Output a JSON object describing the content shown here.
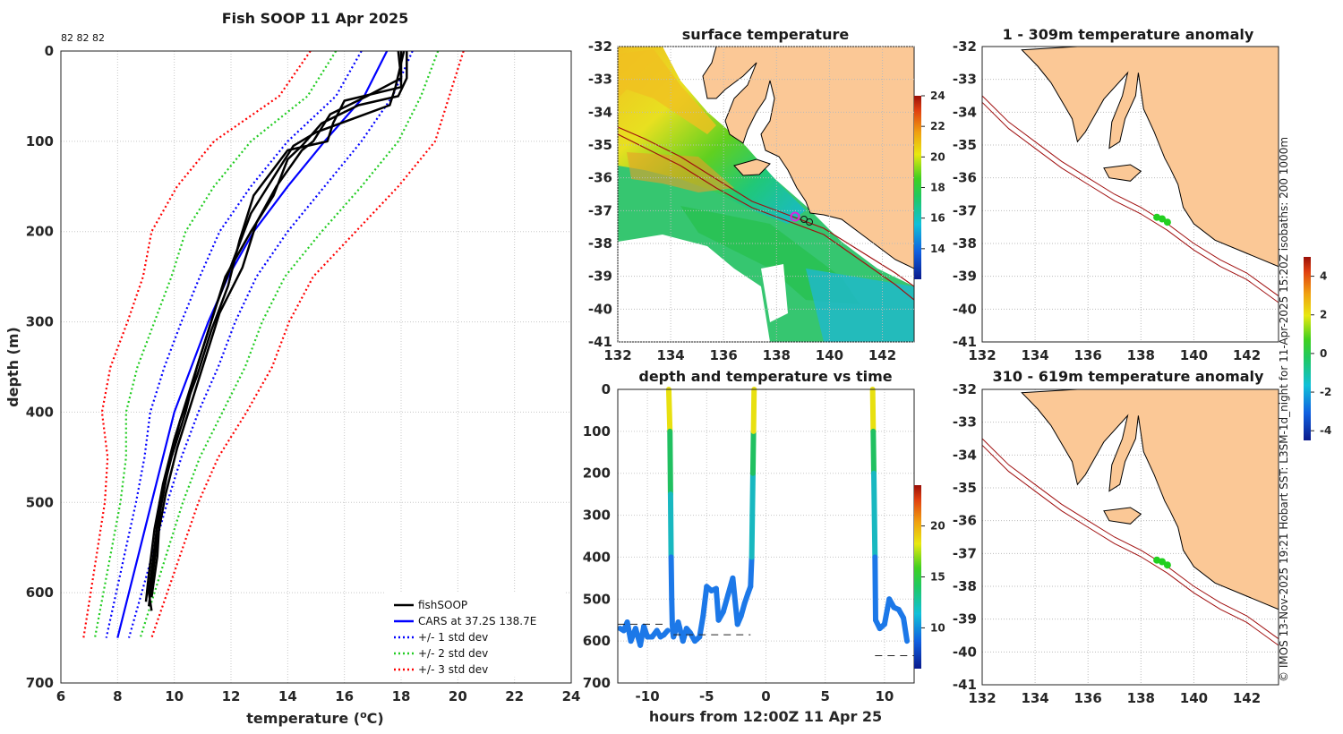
{
  "colors": {
    "fish": "#000000",
    "cars": "#0000ff",
    "sd1": "#0000ff",
    "sd2": "#22cc22",
    "sd3": "#ff0000",
    "land": "#fbc896",
    "isobath": "#a01010",
    "ocean_blank": "#ffffff",
    "grid": "#c8c8c8"
  },
  "chart_data": [
    {
      "type": "line",
      "id": "profile",
      "title": "Fish SOOP 11 Apr 2025",
      "subtitle": "82 82 82",
      "xlabel": "temperature (",
      "xlabel_sup": "o",
      "xlabel_end": "C)",
      "ylabel": "depth (m)",
      "xlim": [
        6,
        24
      ],
      "ylim": [
        0,
        700
      ],
      "xticks": [
        6,
        8,
        10,
        12,
        14,
        16,
        18,
        20,
        22,
        24
      ],
      "yticks": [
        0,
        100,
        200,
        300,
        400,
        500,
        600,
        700
      ],
      "legend": [
        {
          "label": "fishSOOP",
          "style": "solid",
          "color": "#000000"
        },
        {
          "label": "CARS at 37.2S 138.7E",
          "style": "solid",
          "color": "#0000ff"
        },
        {
          "label": "+/- 1 std dev",
          "style": "dotted",
          "color": "#0000ff"
        },
        {
          "label": "+/- 2 std dev",
          "style": "dotted",
          "color": "#22cc22"
        },
        {
          "label": "+/- 3 std dev",
          "style": "dotted",
          "color": "#ff0000"
        }
      ],
      "cars": {
        "depth": [
          0,
          50,
          100,
          150,
          200,
          250,
          300,
          350,
          400,
          450,
          500,
          550,
          600,
          650
        ],
        "temp": [
          17.5,
          16.7,
          15.3,
          14.0,
          12.8,
          11.9,
          11.2,
          10.6,
          10.0,
          9.6,
          9.2,
          8.8,
          8.4,
          8.0
        ]
      },
      "std": {
        "depth": [
          0,
          50,
          100,
          150,
          200,
          250,
          300,
          350,
          400,
          450,
          500,
          550,
          600,
          650
        ],
        "sd": [
          0.9,
          1.0,
          1.3,
          1.3,
          1.2,
          1.0,
          0.95,
          0.95,
          0.85,
          0.65,
          0.55,
          0.5,
          0.45,
          0.4
        ]
      },
      "fish_series": [
        {
          "name": "profile 1",
          "depth": [
            0,
            30,
            50,
            60,
            80,
            105,
            120,
            160,
            200,
            250,
            300,
            350,
            400,
            450,
            500,
            550,
            600,
            620
          ],
          "temp": [
            18.2,
            18.2,
            17.9,
            16.5,
            15.2,
            14.5,
            14.0,
            13.5,
            12.7,
            11.8,
            11.3,
            10.8,
            10.4,
            9.9,
            9.5,
            9.3,
            9.1,
            9.2
          ]
        },
        {
          "name": "profile 2",
          "depth": [
            0,
            40,
            60,
            90,
            105,
            140,
            180,
            230,
            280,
            330,
            380,
            430,
            480,
            530,
            580,
            610
          ],
          "temp": [
            18.1,
            17.8,
            17.6,
            15.0,
            14.2,
            13.5,
            12.7,
            12.1,
            11.5,
            11.0,
            10.5,
            10.0,
            9.6,
            9.3,
            9.1,
            9.0
          ]
        },
        {
          "name": "profile 3",
          "depth": [
            0,
            40,
            55,
            80,
            100,
            110,
            160,
            210,
            260,
            310,
            360,
            410,
            460,
            510,
            560,
            605
          ],
          "temp": [
            18.0,
            18.0,
            16.0,
            15.6,
            15.4,
            14.0,
            12.8,
            12.3,
            11.9,
            11.3,
            10.8,
            10.2,
            9.8,
            9.5,
            9.4,
            9.2
          ]
        },
        {
          "name": "profile 4",
          "depth": [
            0,
            30,
            50,
            70,
            100,
            110,
            150,
            190,
            240,
            290,
            340,
            390,
            440,
            490,
            540,
            590,
            615
          ],
          "temp": [
            17.9,
            18.0,
            16.8,
            15.5,
            14.9,
            14.5,
            13.6,
            12.9,
            12.4,
            11.6,
            11.1,
            10.6,
            10.1,
            9.7,
            9.4,
            9.2,
            9.1
          ]
        }
      ]
    },
    {
      "type": "heatmap",
      "id": "sst_map",
      "title": "surface temperature",
      "xticks": [
        132,
        134,
        136,
        138,
        140,
        142
      ],
      "yticks": [
        -32,
        -33,
        -34,
        -35,
        -36,
        -37,
        -38,
        -39,
        -40,
        -41
      ],
      "xlim": [
        132,
        143.2
      ],
      "ylim": [
        -41,
        -32
      ],
      "colorbar": {
        "min": 12,
        "max": 24,
        "ticks": [
          14,
          16,
          18,
          20,
          22,
          24
        ]
      }
    },
    {
      "type": "scatter",
      "id": "depth_time",
      "title": "depth and temperature vs time",
      "xlabel": "hours from 12:00Z 11 Apr 25",
      "xlim": [
        -12.5,
        12.5
      ],
      "ylim": [
        0,
        700
      ],
      "xticks": [
        -10,
        -5,
        0,
        5,
        10
      ],
      "yticks": [
        0,
        100,
        200,
        300,
        400,
        500,
        600,
        700
      ],
      "colorbar": {
        "min": 6,
        "max": 24,
        "ticks": [
          10,
          15,
          20
        ]
      },
      "segments": [
        {
          "time": [
            -12.3,
            -12.0,
            -11.7,
            -11.4,
            -11.0,
            -10.6,
            -10.3,
            -10.0,
            -9.6,
            -9.2,
            -8.9,
            -8.6,
            -8.3
          ],
          "depth": [
            570,
            575,
            555,
            600,
            570,
            610,
            565,
            590,
            590,
            575,
            590,
            585,
            575
          ]
        },
        {
          "time": [
            -8.2,
            -8.1,
            -8.05,
            -8.0,
            -7.95,
            -7.9,
            -7.85,
            -7.8
          ],
          "depth": [
            0,
            100,
            250,
            400,
            500,
            560,
            580,
            590
          ]
        },
        {
          "time": [
            -7.8,
            -7.4,
            -7.0,
            -6.7,
            -6.4,
            -6.0,
            -5.6,
            -5.3,
            -5.0,
            -4.6,
            -4.2,
            -4.0,
            -3.6,
            -3.2,
            -2.8,
            -2.4,
            -2.1,
            -1.8,
            -1.5,
            -1.3
          ],
          "depth": [
            590,
            555,
            600,
            570,
            580,
            600,
            590,
            540,
            470,
            480,
            475,
            550,
            530,
            490,
            450,
            560,
            540,
            510,
            485,
            470
          ]
        },
        {
          "time": [
            -1.3,
            -1.2,
            -1.15,
            -1.1,
            -1.05,
            -1.0
          ],
          "depth": [
            470,
            400,
            300,
            200,
            100,
            0
          ]
        },
        {
          "time": [
            9.0,
            9.05,
            9.1,
            9.15,
            9.2,
            9.25
          ],
          "depth": [
            0,
            100,
            200,
            300,
            400,
            550
          ]
        },
        {
          "time": [
            9.25,
            9.6,
            10.0,
            10.4,
            10.8,
            11.2,
            11.6,
            11.9
          ],
          "depth": [
            550,
            570,
            560,
            500,
            520,
            525,
            545,
            600
          ]
        }
      ],
      "dashes": [
        {
          "t0": -12.5,
          "t1": -8.3,
          "depth": 560
        },
        {
          "t0": -7.8,
          "t1": -1.3,
          "depth": 585
        },
        {
          "t0": 9.2,
          "t1": 12.5,
          "depth": 635
        }
      ]
    },
    {
      "type": "heatmap",
      "id": "anom_1",
      "title": "1 - 309m temperature anomaly",
      "xticks": [
        132,
        134,
        136,
        138,
        140,
        142
      ],
      "yticks": [
        -32,
        -33,
        -34,
        -35,
        -36,
        -37,
        -38,
        -39,
        -40,
        -41
      ],
      "xlim": [
        132,
        143.2
      ],
      "ylim": [
        -41,
        -32
      ]
    },
    {
      "type": "heatmap",
      "id": "anom_2",
      "title": "310 - 619m temperature anomaly",
      "xticks": [
        132,
        134,
        136,
        138,
        140,
        142
      ],
      "yticks": [
        -32,
        -33,
        -34,
        -35,
        -36,
        -37,
        -38,
        -39,
        -40,
        -41
      ],
      "xlim": [
        132,
        143.2
      ],
      "ylim": [
        -41,
        -32
      ],
      "colorbar": {
        "min": -4.5,
        "max": 5,
        "ticks": [
          -4,
          -2,
          0,
          2,
          4
        ]
      }
    }
  ],
  "side_note": "© IMOS 13-Nov-2025 19:21 Hobart SST: L3SM-1d_night for 11-Apr-2025 15:20Z isobaths: 200  1000m",
  "profile_summary": {
    "n_profiles": 4,
    "location": "37.2S 138.7E"
  }
}
